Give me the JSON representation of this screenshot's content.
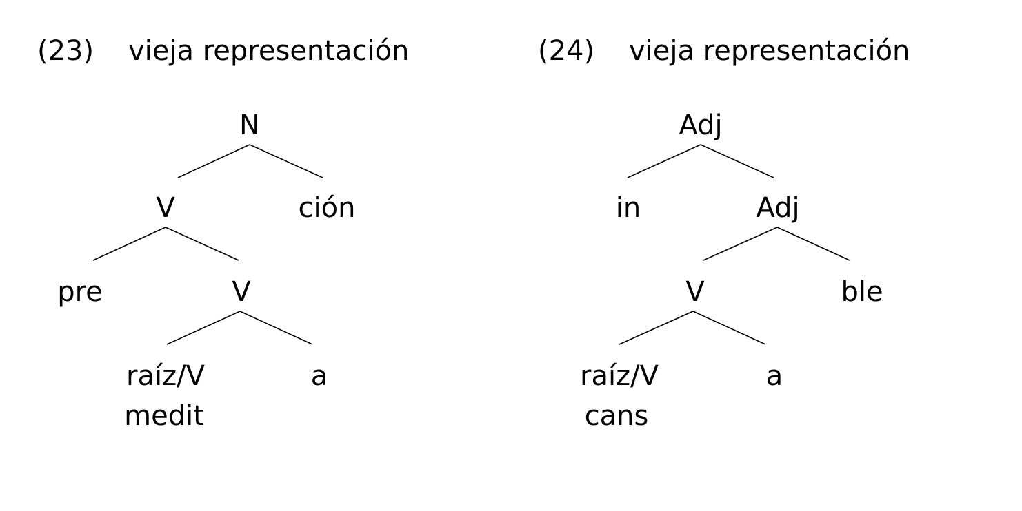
{
  "examples": [
    {
      "number": "(23)",
      "heading": "vieja representación",
      "tree": {
        "root": "N",
        "level1": [
          "V",
          "ción"
        ],
        "level2": [
          "pre",
          "V"
        ],
        "level3": [
          "raíz/V",
          "a"
        ],
        "root_form": "medit"
      }
    },
    {
      "number": "(24)",
      "heading": "vieja representación",
      "tree": {
        "root": "Adj",
        "level1": [
          "in",
          "Adj"
        ],
        "level2": [
          "V",
          "ble"
        ],
        "level3": [
          "raíz/V",
          "a"
        ],
        "root_form": "cans"
      }
    }
  ]
}
